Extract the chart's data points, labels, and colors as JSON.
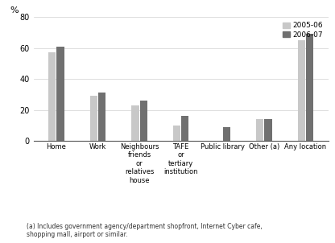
{
  "categories": [
    "Home",
    "Work",
    "Neighbours\nfriends\nor\nrelatives\nhouse",
    "TAFE\nor\ntertiary\ninstitution",
    "Public library",
    "Other (a)",
    "Any location"
  ],
  "values_2005": [
    57,
    29,
    23,
    10,
    0,
    14,
    65
  ],
  "values_2006": [
    61,
    31,
    26,
    16,
    9,
    14,
    69
  ],
  "color_2005": "#c8c8c8",
  "color_2006": "#707070",
  "ylim": [
    0,
    80
  ],
  "yticks": [
    0,
    20,
    40,
    60,
    80
  ],
  "legend_labels": [
    "2005-06",
    "2006-07"
  ],
  "footnote": "(a) Includes government agency/department shopfront, Internet Cyber cafe,\nshopping mall, airport or similar.",
  "bar_width": 0.18,
  "grid_color": "#d0d0d0"
}
